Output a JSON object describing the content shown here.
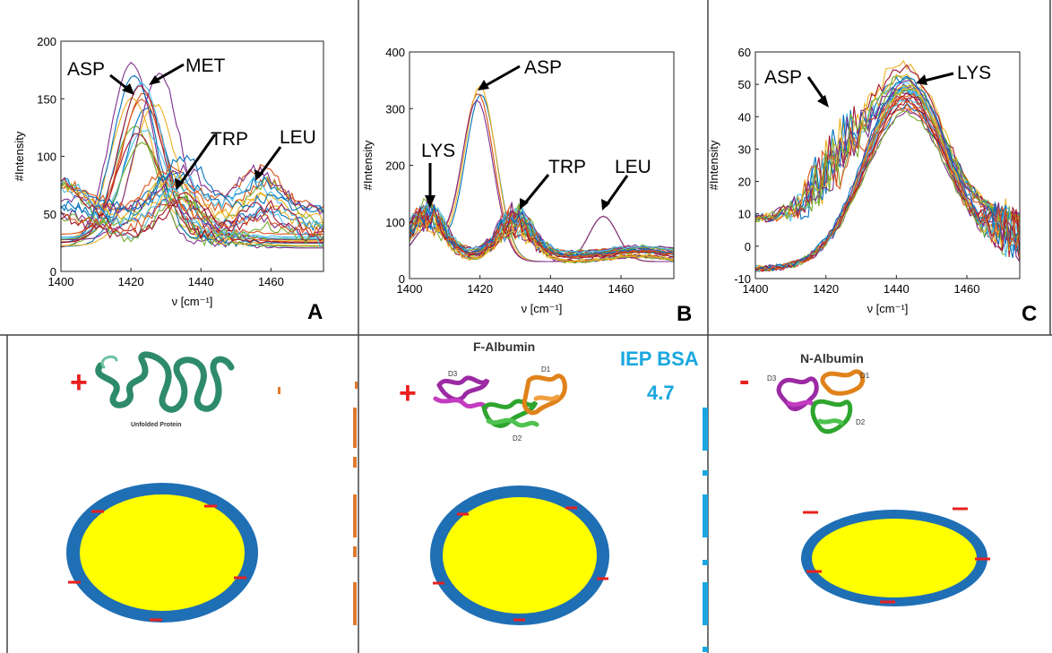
{
  "panels": [
    {
      "panel_label": "A",
      "annotations": [
        "ASP",
        "MET",
        "TRP",
        "LEU"
      ]
    },
    {
      "panel_label": "B",
      "annotations": [
        "LYS",
        "ASP",
        "TRP",
        "LEU"
      ]
    },
    {
      "panel_label": "C",
      "annotations": [
        "ASP",
        "LYS"
      ]
    }
  ],
  "protein_labels": {
    "unfolded": "Unfolded Protein",
    "f_albumin": "F-Albumin",
    "n_albumin": "N-Albumin",
    "domains": [
      "D1",
      "D2",
      "D3"
    ]
  },
  "iep": {
    "title": "IEP BSA",
    "value": "4.7",
    "color": "#1aa7e0"
  },
  "charges": {
    "plus": "+",
    "minus": "-",
    "color": "#e8201e"
  },
  "particle_colors": {
    "shell": "#1f6fb5",
    "core": "#ffff00"
  },
  "chart_data": [
    {
      "type": "line",
      "panel": "A",
      "xlabel": "ν [cm⁻¹]",
      "ylabel": "#Intensity",
      "xlim": [
        1400,
        1475
      ],
      "ylim": [
        0,
        200
      ],
      "xticks": [
        1400,
        1420,
        1440,
        1460
      ],
      "yticks": [
        0,
        50,
        100,
        150,
        200
      ],
      "grid": false,
      "series_note_count": 30,
      "peaks": {
        "ASP": [
          1421,
          155
        ],
        "MET": [
          1425,
          162
        ],
        "TRP": [
          1432,
          65
        ],
        "LEU": [
          1457,
          75
        ]
      }
    },
    {
      "type": "line",
      "panel": "B",
      "xlabel": "ν [cm⁻¹]",
      "ylabel": "#Intensity",
      "xlim": [
        1400,
        1475
      ],
      "ylim": [
        0,
        400
      ],
      "xticks": [
        1400,
        1420,
        1440,
        1460
      ],
      "yticks": [
        0,
        100,
        200,
        300,
        400
      ],
      "grid": false,
      "peaks": {
        "LYS": [
          1405,
          120
        ],
        "ASP": [
          1420,
          360
        ],
        "TRP": [
          1430,
          100
        ],
        "LEU": [
          1455,
          110
        ]
      }
    },
    {
      "type": "line",
      "panel": "C",
      "xlabel": "ν [cm⁻¹]",
      "ylabel": "#Intensity",
      "xlim": [
        1400,
        1475
      ],
      "ylim": [
        -10,
        60
      ],
      "xticks": [
        1400,
        1420,
        1440,
        1460
      ],
      "yticks": [
        -10,
        0,
        10,
        20,
        30,
        40,
        50,
        60
      ],
      "grid": false,
      "peaks": {
        "ASP": [
          1422,
          40
        ],
        "LYS": [
          1442,
          50
        ]
      }
    }
  ]
}
